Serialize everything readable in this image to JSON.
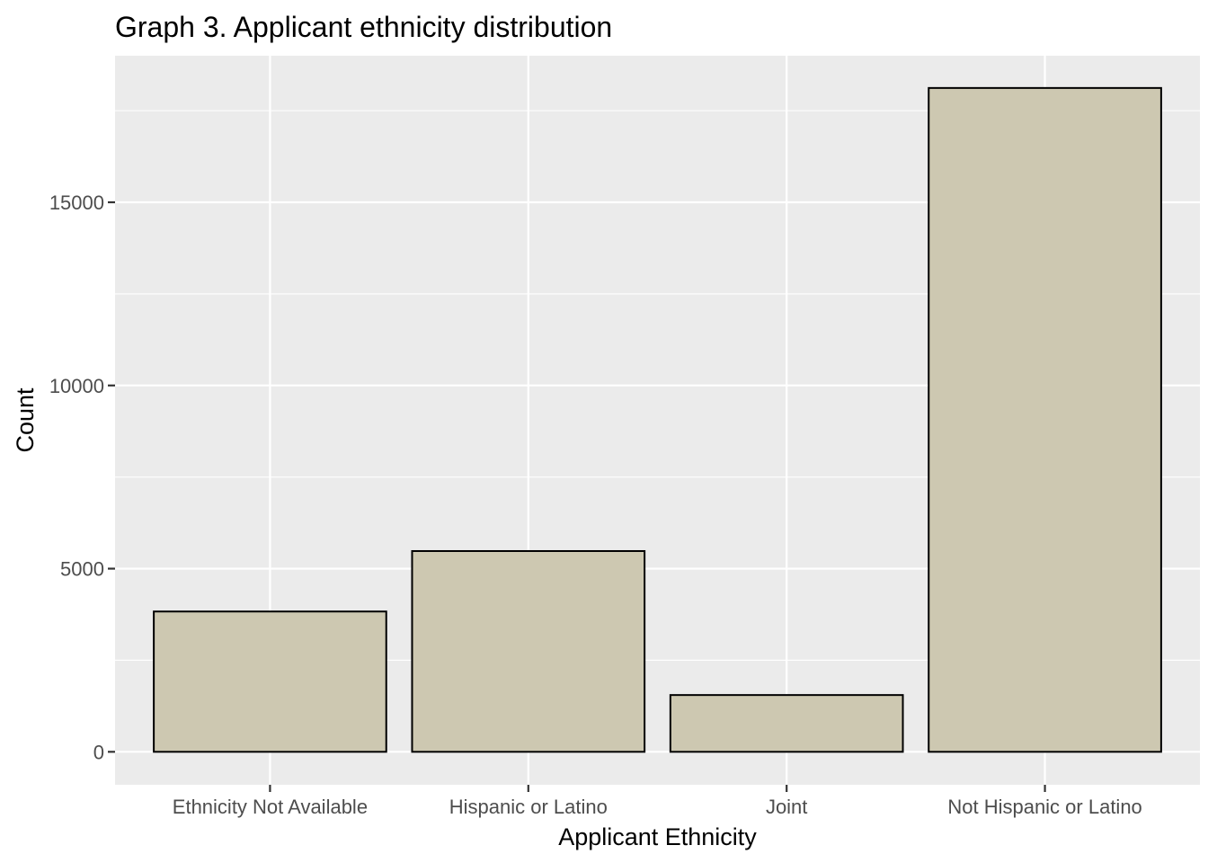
{
  "chart_data": {
    "type": "bar",
    "title": "Graph 3. Applicant ethnicity distribution",
    "xlabel": "Applicant Ethnicity",
    "ylabel": "Count",
    "categories": [
      "Ethnicity Not Available",
      "Hispanic or Latino",
      "Joint",
      "Not Hispanic or Latino"
    ],
    "values": [
      3830,
      5480,
      1550,
      18120
    ],
    "ylim": [
      -900,
      19000
    ],
    "yticks": [
      0,
      5000,
      10000,
      15000
    ],
    "ytick_labels": [
      "0",
      "5000",
      "10000",
      "15000"
    ],
    "grid": true,
    "legend": "none",
    "colors": {
      "panel_background": "#ebebeb",
      "grid_major": "#ffffff",
      "bar_fill": "#cdc8b1",
      "bar_outline": "#000000",
      "tick_text": "#4d4d4d",
      "tick_mark": "#333333"
    }
  }
}
